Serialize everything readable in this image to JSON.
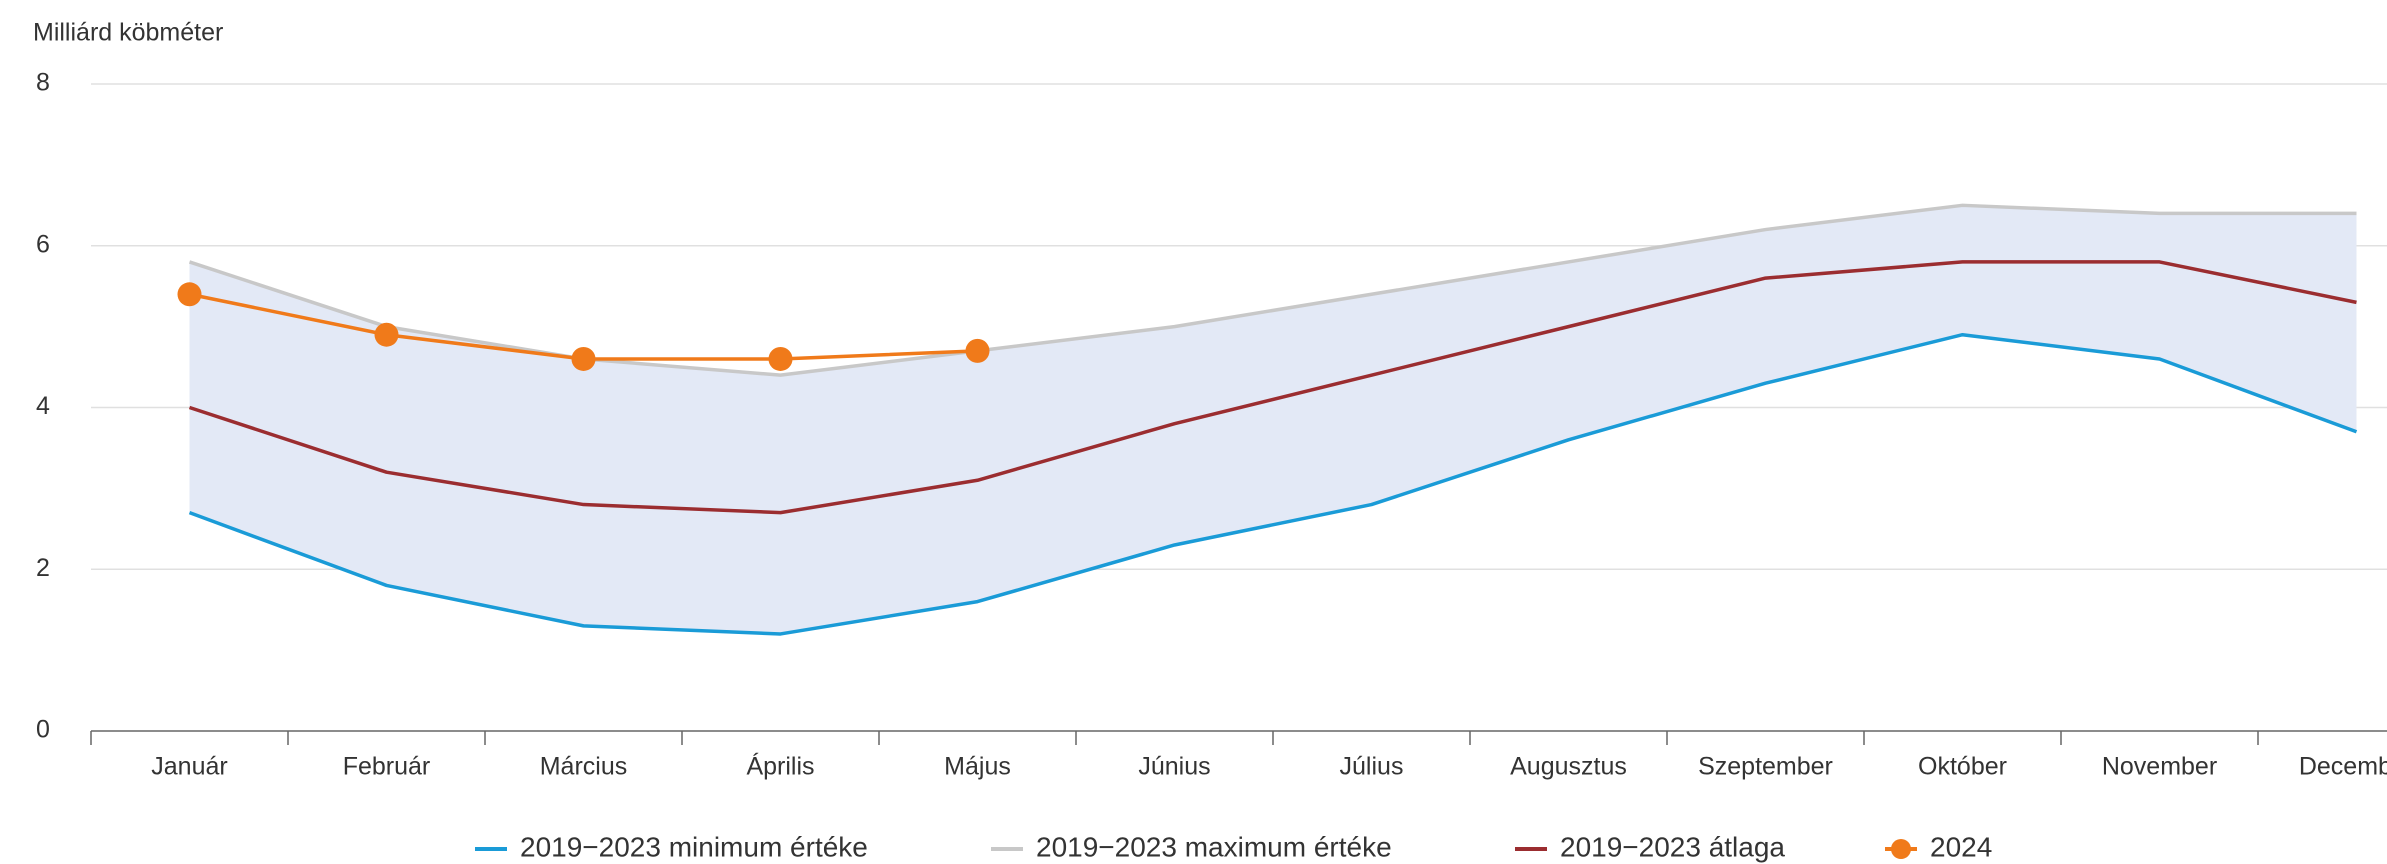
{
  "chart_data": {
    "type": "line",
    "y_axis_label": "Milliárd köbméter",
    "categories": [
      "Január",
      "Február",
      "Március",
      "Április",
      "Május",
      "Június",
      "Július",
      "Augusztus",
      "Szeptember",
      "Október",
      "November",
      "December"
    ],
    "series": [
      {
        "name": "2019−2023 minimum értéke",
        "color": "#1a9bd7",
        "values": [
          2.7,
          1.8,
          1.3,
          1.2,
          1.6,
          2.3,
          2.8,
          3.6,
          4.3,
          4.9,
          4.6,
          3.7
        ]
      },
      {
        "name": "2019−2023 maximum értéke",
        "color": "#c8c8c8",
        "values": [
          5.8,
          5.0,
          4.6,
          4.4,
          4.7,
          5.0,
          5.4,
          5.8,
          6.2,
          6.5,
          6.4,
          6.4
        ]
      },
      {
        "name": "2019−2023 átlaga",
        "color": "#9b2d30",
        "values": [
          4.0,
          3.2,
          2.8,
          2.7,
          3.1,
          3.8,
          4.4,
          5.0,
          5.6,
          5.8,
          5.8,
          5.3
        ]
      },
      {
        "name": "2024",
        "color": "#f07a1a",
        "markers": true,
        "values": [
          5.4,
          4.9,
          4.6,
          4.6,
          4.7,
          null,
          null,
          null,
          null,
          null,
          null,
          null
        ]
      }
    ],
    "band_color": "#e3e9f6",
    "ylim": [
      0,
      8
    ],
    "yticks": [
      0,
      2,
      4,
      6,
      8
    ],
    "grid": true,
    "legend": "bottom"
  }
}
